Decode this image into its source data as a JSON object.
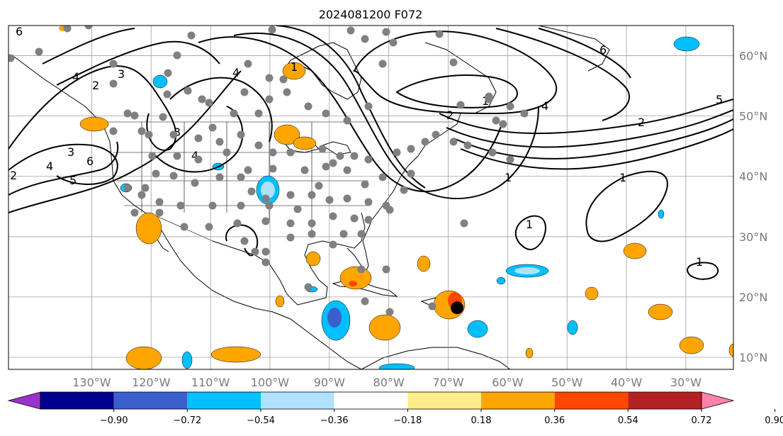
{
  "title": "2024081200 F072",
  "map": {
    "lon_range": [
      -144,
      -22
    ],
    "lat_range": [
      8,
      65
    ],
    "lat_ticks": [
      {
        "lat": 60,
        "label": "60°N"
      },
      {
        "lat": 50,
        "label": "50°N"
      },
      {
        "lat": 40,
        "label": "40°N"
      },
      {
        "lat": 30,
        "label": "30°N"
      },
      {
        "lat": 20,
        "label": "20°N"
      },
      {
        "lat": 10,
        "label": "10°N"
      }
    ],
    "lon_ticks": [
      {
        "lon": -130,
        "label": "130°W"
      },
      {
        "lon": -120,
        "label": "120°W"
      },
      {
        "lon": -110,
        "label": "110°W"
      },
      {
        "lon": -100,
        "label": "100°W"
      },
      {
        "lon": -90,
        "label": "90°W"
      },
      {
        "lon": -80,
        "label": "80°W"
      },
      {
        "lon": -70,
        "label": "70°W"
      },
      {
        "lon": -60,
        "label": "60°W"
      },
      {
        "lon": -50,
        "label": "50°W"
      },
      {
        "lon": -40,
        "label": "40°W"
      },
      {
        "lon": -30,
        "label": "30°W"
      }
    ],
    "storm_marker": {
      "lon": -68.5,
      "lat": 18.2
    }
  },
  "colorbar": {
    "levels": [
      "−0.90",
      "−0.72",
      "−0.54",
      "−0.36",
      "−0.18",
      "0.18",
      "0.36",
      "0.54",
      "0.72",
      "0.90"
    ],
    "colors": [
      "#9932cc",
      "#00008b",
      "#3a5fcd",
      "#00bfff",
      "#b0e2ff",
      "#ffffff",
      "#ffec8b",
      "#ffa500",
      "#ff4500",
      "#b22222",
      "#ff82ab"
    ]
  },
  "contour_labels": [
    "1",
    "2",
    "3",
    "4",
    "5",
    "6"
  ],
  "chart_data": {
    "type": "map",
    "title": "2024081200 F072",
    "colorbar_levels": [
      -0.9,
      -0.72,
      -0.54,
      -0.36,
      -0.18,
      0.18,
      0.36,
      0.54,
      0.72,
      0.9
    ],
    "colorbar_colors": [
      "#9932cc",
      "#00008b",
      "#3a5fcd",
      "#00bfff",
      "#b0e2ff",
      "#ffffff",
      "#ffec8b",
      "#ffa500",
      "#ff4500",
      "#b22222",
      "#ff82ab"
    ]
  }
}
